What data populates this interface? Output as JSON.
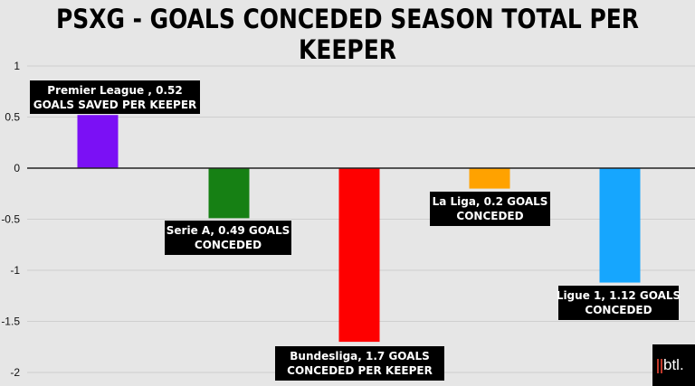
{
  "title": "PSXG - GOALS CONCEDED SEASON TOTAL PER KEEPER",
  "logo": {
    "text": "btl."
  },
  "chart_data": {
    "type": "bar",
    "title": "PSXG - GOALS CONCEDED SEASON TOTAL PER KEEPER",
    "categories": [
      "Premier League",
      "Serie A",
      "Bundesliga",
      "La Liga",
      "Ligue 1"
    ],
    "values": [
      0.52,
      -0.49,
      -1.7,
      -0.2,
      -1.12
    ],
    "colors": [
      "#7b10f5",
      "#168014",
      "#fe0000",
      "#ffa200",
      "#16a6fe"
    ],
    "ylim": [
      -2,
      1
    ],
    "yticks": [
      1,
      0.5,
      0,
      -0.5,
      -1,
      -1.5,
      -2
    ],
    "ytick_labels": [
      "1",
      "0.5",
      "0",
      "-0.5",
      "-1",
      "-1.5",
      "-2"
    ],
    "grid": true,
    "data_labels": [
      [
        "Premier League , 0.52",
        "GOALS SAVED PER KEEPER"
      ],
      [
        "Serie A, 0.49 GOALS",
        "CONCEDED"
      ],
      [
        "Bundesliga, 1.7 GOALS",
        "CONCEDED PER KEEPER"
      ],
      [
        "La Liga, 0.2 GOALS",
        "CONCEDED"
      ],
      [
        "Ligue 1, 1.12 GOALS",
        "CONCEDED"
      ]
    ]
  }
}
